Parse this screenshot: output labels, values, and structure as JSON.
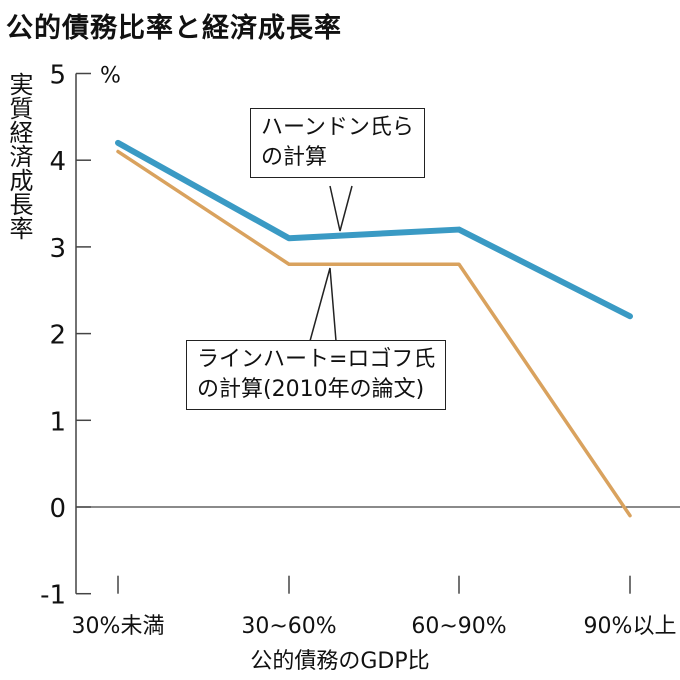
{
  "title": "公的債務比率と経済成長率",
  "chart_data": {
    "type": "line",
    "title": "公的債務比率と経済成長率",
    "xlabel": "公的債務のGDP比",
    "ylabel": "実質経済成長率",
    "y_unit": "%",
    "categories": [
      "30%未満",
      "30~60%",
      "60~90%",
      "90%以上"
    ],
    "ylim": [
      -1,
      5
    ],
    "yticks": [
      5,
      4,
      3,
      2,
      1,
      0,
      -1
    ],
    "series": [
      {
        "name": "ハーンドン氏らの計算",
        "values": [
          4.2,
          3.1,
          3.2,
          2.2
        ],
        "color": "#3a9ac4"
      },
      {
        "name": "ラインハート=ロゴフ氏の計算(2010年の論文)",
        "values": [
          4.1,
          2.8,
          2.8,
          -0.1
        ],
        "color": "#d9a25e"
      }
    ],
    "annotations": [
      {
        "line1": "ハーンドン氏ら",
        "line2": "の計算"
      },
      {
        "line1": "ラインハート=ロゴフ氏",
        "line2": "の計算(2010年の論文)"
      }
    ]
  }
}
